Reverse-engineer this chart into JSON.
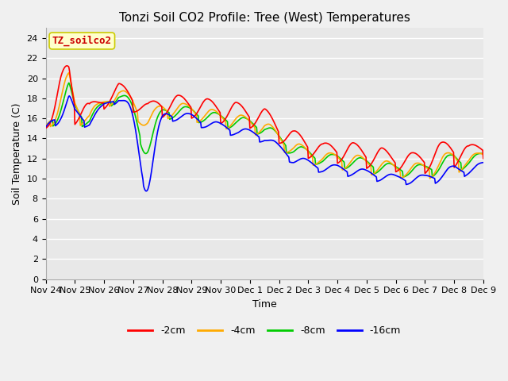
{
  "title": "Tonzi Soil CO2 Profile: Tree (West) Temperatures",
  "xlabel": "Time",
  "ylabel": "Soil Temperature (C)",
  "ylim": [
    0,
    25
  ],
  "yticks": [
    0,
    2,
    4,
    6,
    8,
    10,
    12,
    14,
    16,
    18,
    20,
    22,
    24
  ],
  "xtick_labels": [
    "Nov 24",
    "Nov 25",
    "Nov 26",
    "Nov 27",
    "Nov 28",
    "Nov 29",
    "Nov 30",
    "Dec 1",
    "Dec 2",
    "Dec 3",
    "Dec 4",
    "Dec 5",
    "Dec 6",
    "Dec 7",
    "Dec 8",
    "Dec 9"
  ],
  "series_labels": [
    "-2cm",
    "-4cm",
    "-8cm",
    "-16cm"
  ],
  "series_colors": [
    "#ff0000",
    "#ffaa00",
    "#00cc00",
    "#0000ff"
  ],
  "line_width": 1.2,
  "legend_box_color": "#ffffcc",
  "legend_box_edge": "#cccc00",
  "annotation_text": "TZ_soilco2",
  "annotation_color": "#cc0000",
  "plot_bg_color": "#e8e8e8",
  "fig_bg_color": "#f0f0f0",
  "grid_color": "#ffffff",
  "title_fontsize": 11,
  "tick_fontsize": 8,
  "label_fontsize": 9
}
